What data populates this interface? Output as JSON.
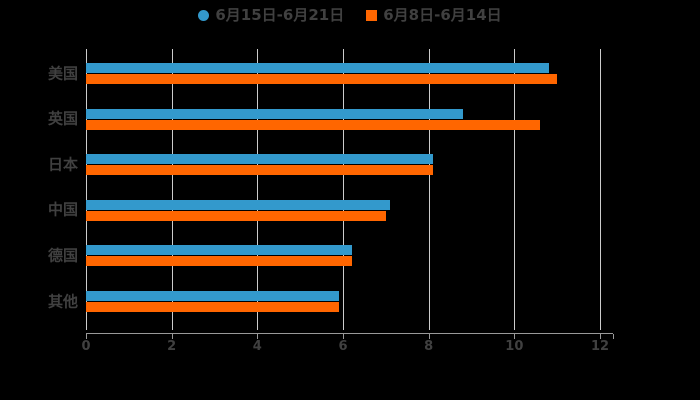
{
  "background": "#000000",
  "legend": {
    "items": [
      {
        "label": "6月15日-6月21日",
        "marker": "circle-icon",
        "color": "#3399cc"
      },
      {
        "label": "6月8日-6月14日",
        "marker": "square-icon",
        "color": "#ff6600"
      }
    ],
    "text_color": "#404040",
    "position": "top-center"
  },
  "chart_data": {
    "type": "bar",
    "orientation": "horizontal",
    "title": "",
    "xlabel": "",
    "ylabel": "",
    "categories": [
      "美国",
      "英国",
      "日本",
      "中国",
      "德国",
      "其他"
    ],
    "series": [
      {
        "name": "6月15日-6月21日",
        "color": "#3399cc",
        "values": [
          10.8,
          8.8,
          8.1,
          7.1,
          6.2,
          5.9
        ]
      },
      {
        "name": "6月8日-6月14日",
        "color": "#ff6600",
        "values": [
          11.0,
          10.6,
          8.1,
          7.0,
          6.2,
          5.9
        ]
      }
    ],
    "xlim": [
      0,
      12
    ],
    "xticks": [
      0,
      2,
      4,
      6,
      8,
      10,
      12
    ],
    "grid": true,
    "grid_color": "#cccccc",
    "axis_color": "#999999",
    "label_color": "#404040",
    "legend_position": "top"
  }
}
